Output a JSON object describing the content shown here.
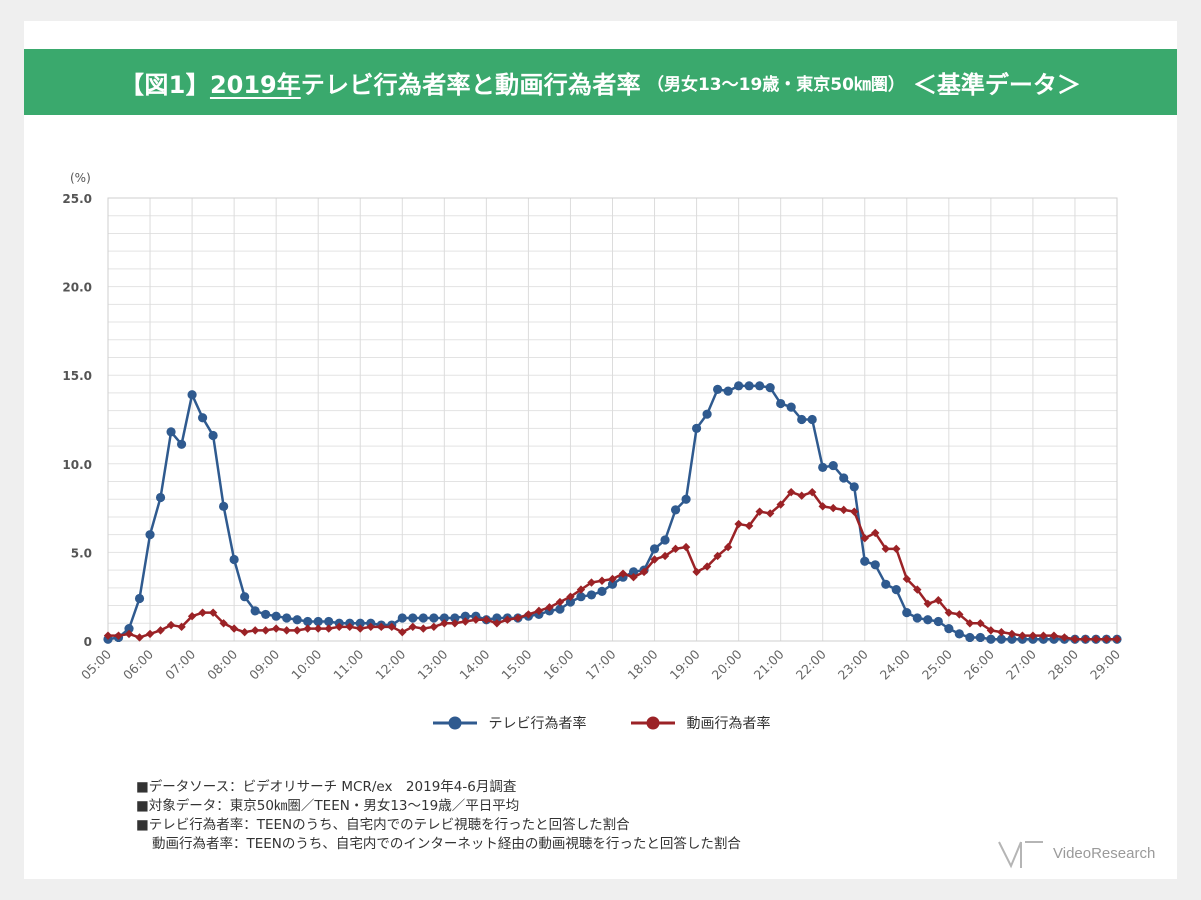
{
  "header": {
    "prefix": "【図1】",
    "year": "2019年",
    "title": " テレビ行為者率と動画行為者率",
    "subtitle": "（男女13～19歳・東京50㎞圏）",
    "tag": "＜基準データ＞"
  },
  "chart_data": {
    "type": "line",
    "y_unit_label": "(%)",
    "ylim": [
      0,
      25
    ],
    "y_ticks": [
      "0",
      "5.0",
      "10.0",
      "15.0",
      "20.0",
      "25.0"
    ],
    "x_ticks": [
      "05:00",
      "06:00",
      "07:00",
      "08:00",
      "09:00",
      "10:00",
      "11:00",
      "12:00",
      "13:00",
      "14:00",
      "15:00",
      "16:00",
      "17:00",
      "18:00",
      "19:00",
      "20:00",
      "21:00",
      "22:00",
      "23:00",
      "24:00",
      "25:00",
      "26:00",
      "27:00",
      "28:00",
      "29:00"
    ],
    "x_interval_minutes": 15,
    "series": [
      {
        "name": "テレビ行為者率",
        "color": "#2f5a8f",
        "marker": "circle",
        "values": [
          0.1,
          0.2,
          0.7,
          2.4,
          6.0,
          8.1,
          11.8,
          11.1,
          13.9,
          12.6,
          11.6,
          7.6,
          4.6,
          2.5,
          1.7,
          1.5,
          1.4,
          1.3,
          1.2,
          1.1,
          1.1,
          1.1,
          1.0,
          1.0,
          1.0,
          1.0,
          0.9,
          0.9,
          1.3,
          1.3,
          1.3,
          1.3,
          1.3,
          1.3,
          1.4,
          1.4,
          1.2,
          1.3,
          1.3,
          1.3,
          1.4,
          1.5,
          1.7,
          1.8,
          2.2,
          2.5,
          2.6,
          2.8,
          3.2,
          3.6,
          3.9,
          4.0,
          5.2,
          5.7,
          7.4,
          8.0,
          12.0,
          12.8,
          14.2,
          14.1,
          14.4,
          14.4,
          14.4,
          14.3,
          13.4,
          13.2,
          12.5,
          12.5,
          9.8,
          9.9,
          9.2,
          8.7,
          4.5,
          4.3,
          3.2,
          2.9,
          1.6,
          1.3,
          1.2,
          1.1,
          0.7,
          0.4,
          0.2,
          0.2,
          0.1,
          0.1,
          0.1,
          0.1,
          0.1,
          0.1,
          0.1,
          0.1,
          0.1,
          0.1,
          0.1,
          0.1,
          0.1
        ]
      },
      {
        "name": "動画行為者率",
        "color": "#9b2226",
        "marker": "diamond",
        "values": [
          0.3,
          0.3,
          0.4,
          0.2,
          0.4,
          0.6,
          0.9,
          0.8,
          1.4,
          1.6,
          1.6,
          1.0,
          0.7,
          0.5,
          0.6,
          0.6,
          0.7,
          0.6,
          0.6,
          0.7,
          0.7,
          0.7,
          0.8,
          0.8,
          0.7,
          0.8,
          0.8,
          0.8,
          0.5,
          0.8,
          0.7,
          0.8,
          1.0,
          1.0,
          1.1,
          1.2,
          1.2,
          1.0,
          1.2,
          1.3,
          1.5,
          1.7,
          1.9,
          2.2,
          2.5,
          2.9,
          3.3,
          3.4,
          3.5,
          3.8,
          3.6,
          3.9,
          4.6,
          4.8,
          5.2,
          5.3,
          3.9,
          4.2,
          4.8,
          5.3,
          6.6,
          6.5,
          7.3,
          7.2,
          7.7,
          8.4,
          8.2,
          8.4,
          7.6,
          7.5,
          7.4,
          7.3,
          5.8,
          6.1,
          5.2,
          5.2,
          3.5,
          2.9,
          2.1,
          2.3,
          1.6,
          1.5,
          1.0,
          1.0,
          0.6,
          0.5,
          0.4,
          0.3,
          0.3,
          0.3,
          0.3,
          0.2,
          0.1,
          0.1,
          0.1,
          0.1,
          0.1
        ]
      }
    ]
  },
  "legend": {
    "tv": "テレビ行為者率",
    "video": "動画行為者率"
  },
  "notes": {
    "source": "■データソース：ビデオリサーチ MCR/ex　2019年4-6月調査",
    "target": "■対象データ：東京50㎞圏／TEEN・男女13～19歳／平日平均",
    "tv_def": "■テレビ行為者率：TEENのうち、自宅内でのテレビ視聴を行ったと回答した割合",
    "video_def": "動画行為者率：TEENのうち、自宅内でのインターネット経由の動画視聴を行ったと回答した割合"
  },
  "logo": {
    "text": "VideoResearch"
  },
  "colors": {
    "banner": "#3aa96d",
    "tv": "#2f5a8f",
    "video": "#9b2226",
    "grid": "#d9d9d9"
  }
}
